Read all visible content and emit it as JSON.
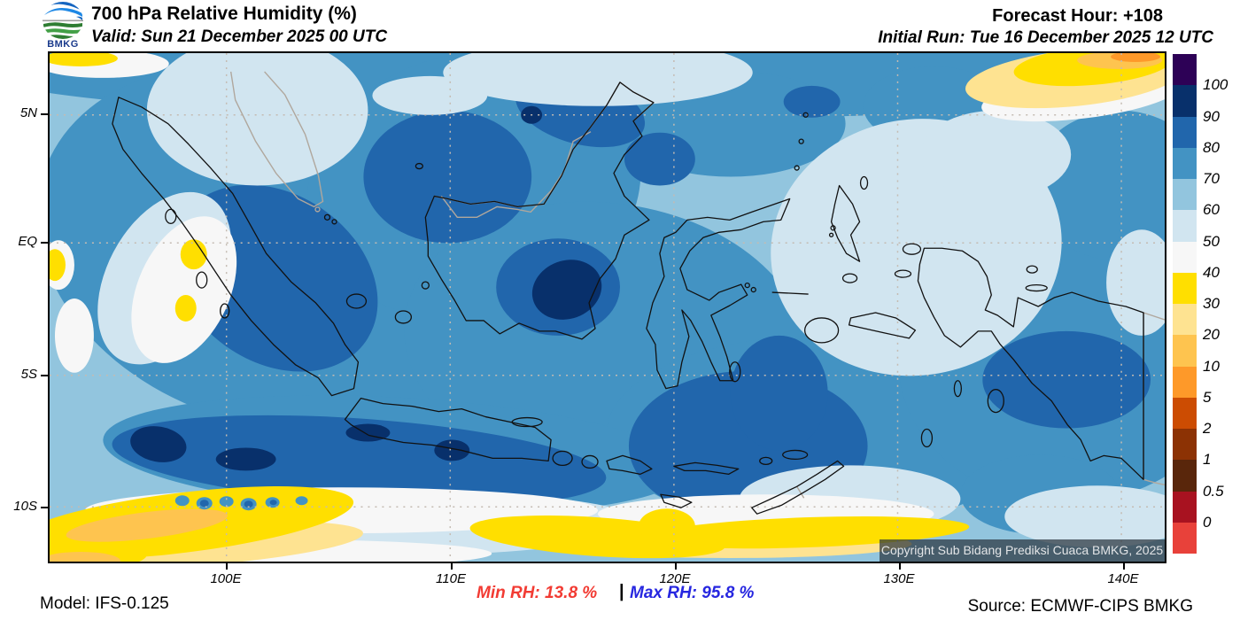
{
  "header": {
    "logo_text": "BMKG",
    "title": "700 hPa Relative Humidity (%)",
    "valid_line": "Valid: Sun 21 December 2025 00 UTC",
    "forecast_hour": "Forecast Hour: +108",
    "initial_run": "Initial Run: Tue 16 December 2025 12 UTC"
  },
  "map": {
    "x_tick_labels": [
      "100E",
      "110E",
      "120E",
      "130E",
      "140E"
    ],
    "y_tick_labels": [
      "5N",
      "EQ",
      "5S",
      "10S"
    ],
    "copyright": "Copyright Sub Bidang Prediksi Cuaca BMKG, 2025"
  },
  "legend": {
    "labels": [
      "100",
      "90",
      "80",
      "70",
      "60",
      "50",
      "40",
      "30",
      "20",
      "10",
      "5",
      "2",
      "1",
      "0.5",
      "0"
    ],
    "band_colors": [
      "#2d0156",
      "#08306b",
      "#2166ac",
      "#4393c3",
      "#92c5de",
      "#d1e5f0",
      "#f7f7f7",
      "#ffdf00",
      "#fee391",
      "#fec44f",
      "#fe9929",
      "#cc4c02",
      "#8c3204",
      "#59260b",
      "#a81220",
      "#e8413a"
    ]
  },
  "footer": {
    "model": "Model: IFS-0.125",
    "min_rh": "Min RH:  13.8 %",
    "separator": "|",
    "max_rh": "Max RH:  95.8 %",
    "source": "Source: ECMWF-CIPS BMKG",
    "min_color": "#f23b33",
    "max_color": "#2727e0"
  }
}
